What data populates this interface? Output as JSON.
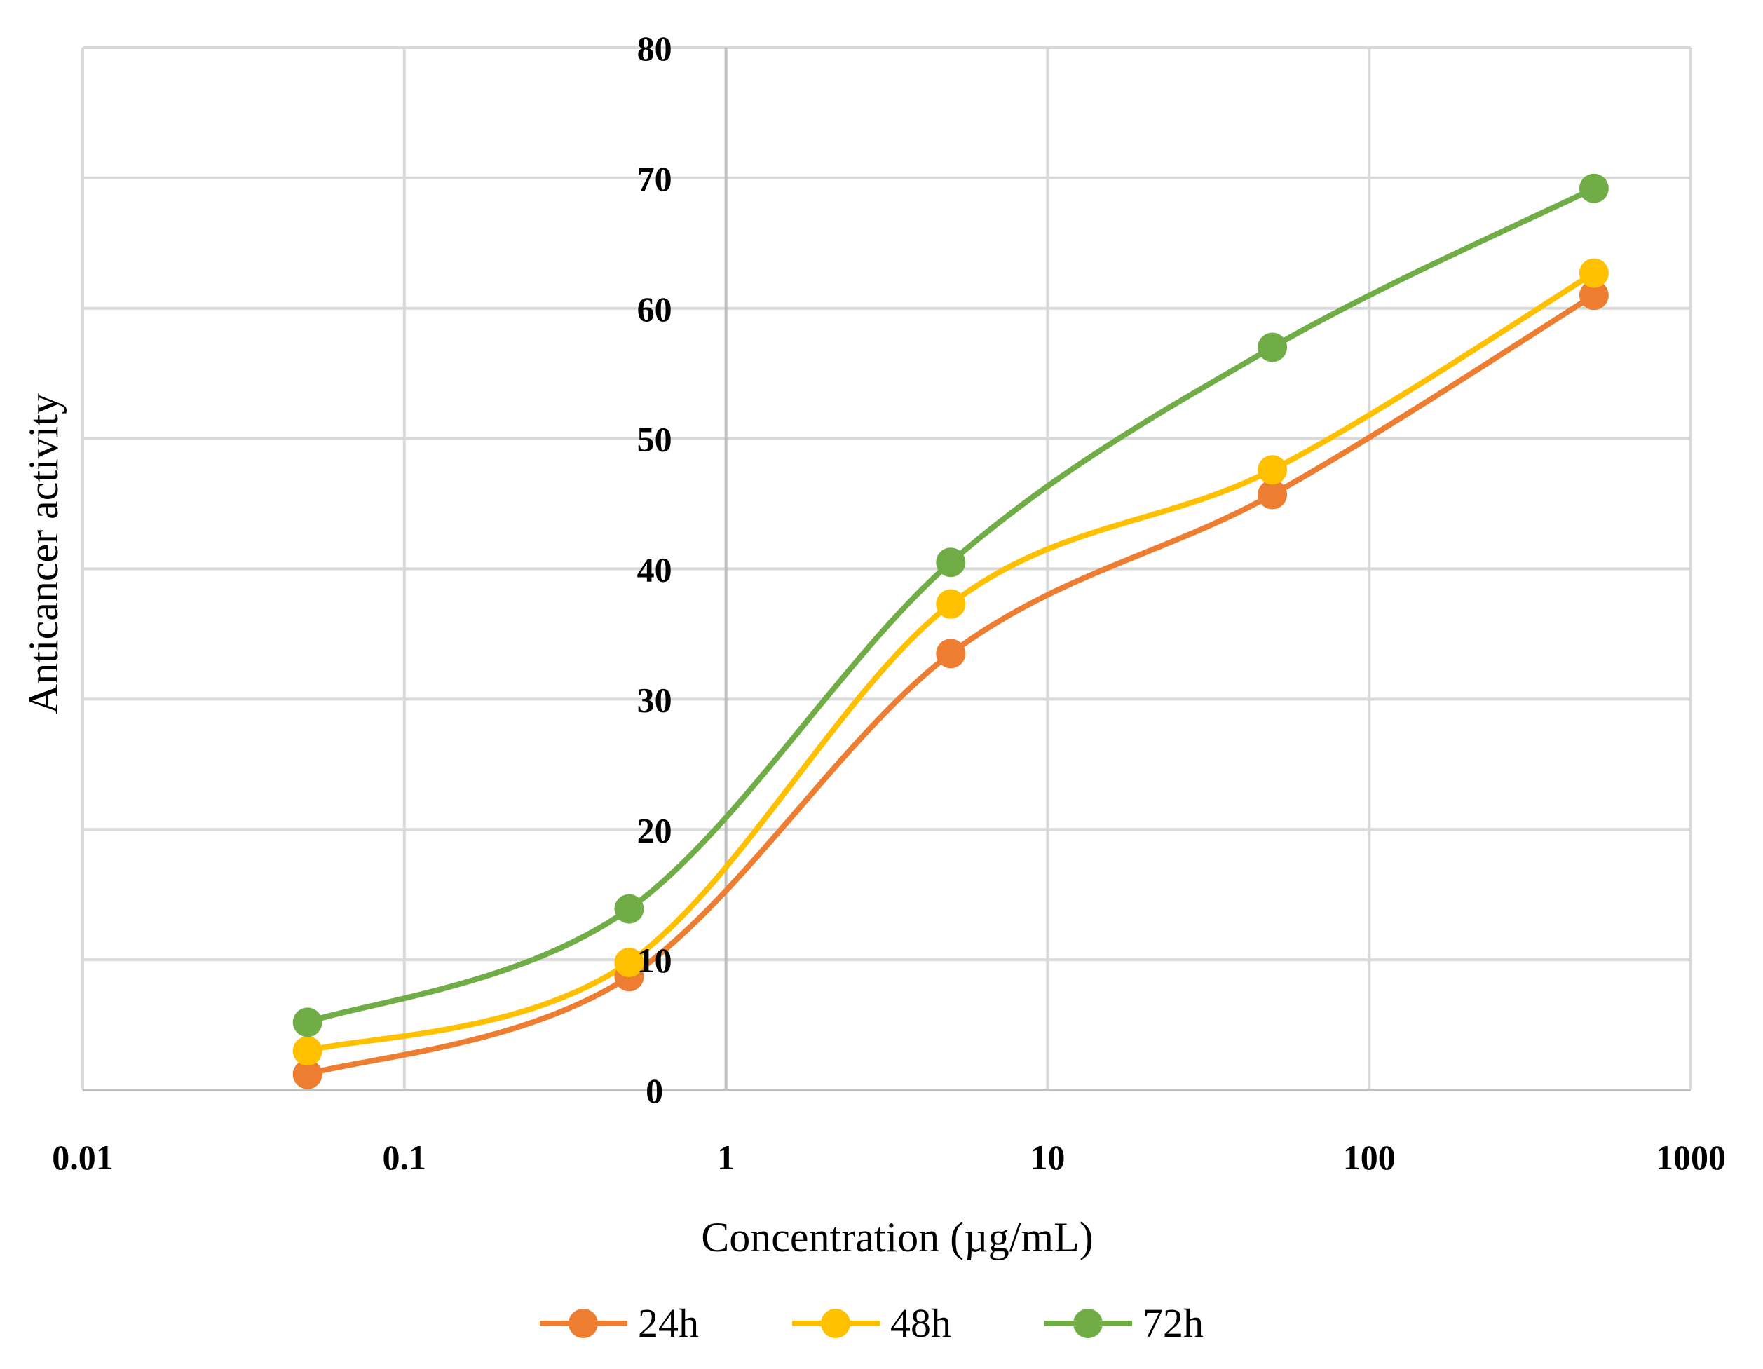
{
  "chart_data": {
    "type": "line",
    "title": "",
    "xlabel": "Concentration (µg/mL)",
    "ylabel": "Anticancer  activity",
    "x_scale": "log",
    "xlim": [
      0.01,
      1000
    ],
    "ylim": [
      0,
      80
    ],
    "x_ticks": [
      0.01,
      0.1,
      1,
      10,
      100,
      1000
    ],
    "x_tick_labels": [
      "0.01",
      "0.1",
      "1",
      "10",
      "100",
      "1000"
    ],
    "y_ticks": [
      0,
      10,
      20,
      30,
      40,
      50,
      60,
      70,
      80
    ],
    "y_tick_labels": [
      "0",
      "10",
      "20",
      "30",
      "40",
      "50",
      "60",
      "70",
      "80"
    ],
    "grid": true,
    "legend_position": "bottom",
    "x": [
      0.05,
      0.5,
      5,
      50,
      500
    ],
    "series": [
      {
        "name": "24h",
        "color": "#ED7D31",
        "values": [
          1.2,
          8.7,
          33.5,
          45.7,
          61.0
        ]
      },
      {
        "name": "48h",
        "color": "#FFC000",
        "values": [
          3.0,
          9.8,
          37.3,
          47.6,
          62.7
        ]
      },
      {
        "name": "72h",
        "color": "#70AD47",
        "values": [
          5.2,
          13.9,
          40.5,
          57.0,
          69.2
        ]
      }
    ]
  }
}
